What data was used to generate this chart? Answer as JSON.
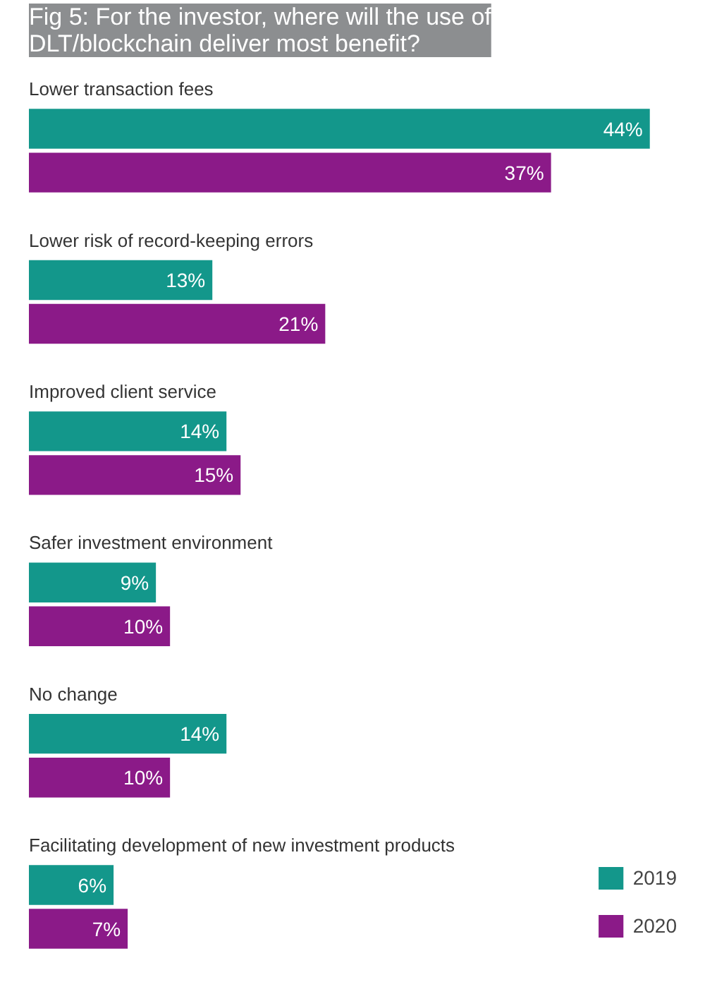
{
  "chart_data": {
    "type": "bar",
    "orientation": "horizontal",
    "title": "Fig 5: For the investor, where will the use of DLT/blockchain deliver most benefit?",
    "categories": [
      "Lower transaction fees",
      "Lower risk of record-keeping errors",
      "Improved client service",
      "Safer investment environment",
      "No change",
      "Facilitating development of new investment products"
    ],
    "series": [
      {
        "name": "2019",
        "color": "#13978b",
        "values": [
          44,
          13,
          14,
          9,
          14,
          6
        ],
        "value_labels": [
          "44%",
          "13%",
          "14%",
          "9%",
          "14%",
          "6%"
        ]
      },
      {
        "name": "2020",
        "color": "#8b1a88",
        "values": [
          37,
          21,
          15,
          10,
          10,
          7
        ],
        "value_labels": [
          "37%",
          "21%",
          "15%",
          "10%",
          "10%",
          "7%"
        ]
      }
    ],
    "legend": "bottom right",
    "grid": false
  }
}
